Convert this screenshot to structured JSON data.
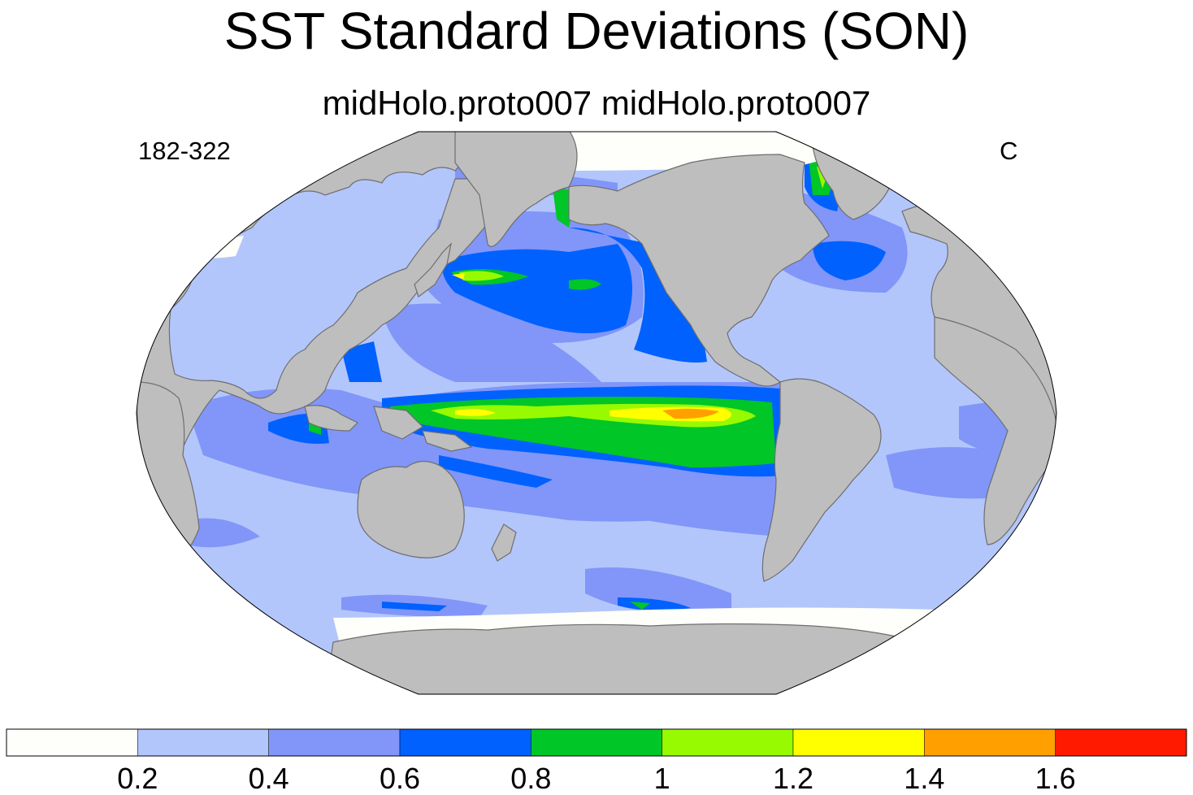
{
  "title": "SST Standard Deviations (SON)",
  "subtitle": "midHolo.proto007  midHolo.proto007",
  "left_label": "182-322",
  "right_label": "C",
  "colors": {
    "land": "#bebebe",
    "ocean_background": "#b3c6fb",
    "coastline": "#6e6e6e"
  },
  "colorbar": {
    "levels": [
      "0.2",
      "0.4",
      "0.6",
      "0.8",
      "1",
      "1.2",
      "1.4",
      "1.6"
    ],
    "colors": [
      "#fefefa",
      "#b3c6fb",
      "#8196f8",
      "#0161fe",
      "#00c627",
      "#98fa00",
      "#ffff00",
      "#ff9f00",
      "#ff1a00"
    ]
  }
}
